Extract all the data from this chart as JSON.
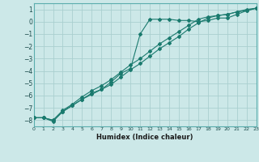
{
  "xlabel": "Humidex (Indice chaleur)",
  "bg_color": "#cce8e8",
  "grid_color": "#aacfcf",
  "line_color": "#1a7a6e",
  "x_min": 0,
  "x_max": 23,
  "y_min": -8.5,
  "y_max": 1.5,
  "x_ticks": [
    0,
    1,
    2,
    3,
    4,
    5,
    6,
    7,
    8,
    9,
    10,
    11,
    12,
    13,
    14,
    15,
    16,
    17,
    18,
    19,
    20,
    21,
    22,
    23
  ],
  "y_ticks": [
    1,
    0,
    -1,
    -2,
    -3,
    -4,
    -5,
    -6,
    -7,
    -8
  ],
  "line1_x": [
    0,
    1,
    2,
    3,
    4,
    5,
    6,
    7,
    8,
    9,
    10,
    11,
    12,
    13,
    14,
    15,
    16,
    17,
    18,
    19,
    20,
    21,
    22,
    23
  ],
  "line1_y": [
    -7.8,
    -7.8,
    -8.1,
    -7.3,
    -6.8,
    -6.3,
    -5.8,
    -5.5,
    -4.9,
    -4.2,
    -3.8,
    -1.0,
    0.2,
    0.2,
    0.2,
    0.1,
    0.1,
    0.0,
    0.1,
    0.3,
    0.3,
    0.6,
    0.9,
    1.1
  ],
  "line2_x": [
    0,
    1,
    2,
    3,
    4,
    5,
    6,
    7,
    8,
    9,
    10,
    11,
    12,
    13,
    14,
    15,
    16,
    17,
    18,
    19,
    20,
    21,
    22,
    23
  ],
  "line2_y": [
    -7.8,
    -7.8,
    -8.0,
    -7.2,
    -6.7,
    -6.1,
    -5.6,
    -5.2,
    -4.7,
    -4.1,
    -3.5,
    -3.0,
    -2.4,
    -1.8,
    -1.3,
    -0.8,
    -0.3,
    0.2,
    0.4,
    0.5,
    0.6,
    0.8,
    0.9,
    1.1
  ],
  "line3_x": [
    0,
    1,
    2,
    3,
    4,
    5,
    6,
    7,
    8,
    9,
    10,
    11,
    12,
    13,
    14,
    15,
    16,
    17,
    18,
    19,
    20,
    21,
    22,
    23
  ],
  "line3_y": [
    -7.8,
    -7.8,
    -8.0,
    -7.3,
    -6.8,
    -6.3,
    -5.9,
    -5.5,
    -5.1,
    -4.5,
    -3.9,
    -3.4,
    -2.8,
    -2.2,
    -1.7,
    -1.2,
    -0.6,
    -0.1,
    0.3,
    0.5,
    0.6,
    0.8,
    1.0,
    1.1
  ]
}
